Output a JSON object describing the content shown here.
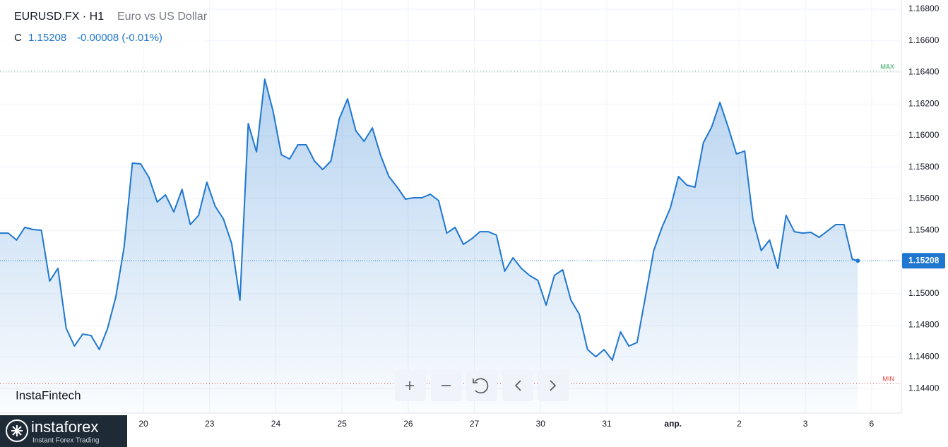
{
  "chart_data": {
    "type": "area",
    "title": "EURUSD.FX · H1",
    "subtitle": "Euro vs US Dollar",
    "close_label": "C",
    "change": "-0.00008 (-0.01%)",
    "brand": "InstaFintech",
    "logo_name": "instaforex",
    "logo_tagline": "Instant Forex Trading",
    "color": "#1f77d0",
    "grid": true,
    "xlim": [
      -52,
      274.8
    ],
    "xticks": [
      {
        "value": 0,
        "label": "20"
      },
      {
        "value": 24,
        "label": "23"
      },
      {
        "value": 48,
        "label": "24"
      },
      {
        "value": 72,
        "label": "25"
      },
      {
        "value": 96,
        "label": "26"
      },
      {
        "value": 120,
        "label": "27"
      },
      {
        "value": 144,
        "label": "30"
      },
      {
        "value": 168,
        "label": "31"
      },
      {
        "value": 192,
        "label": "апр."
      },
      {
        "value": 216,
        "label": "2"
      },
      {
        "value": 240,
        "label": "3"
      },
      {
        "value": 264,
        "label": "6"
      }
    ],
    "ylim": [
      1.14244,
      1.16858
    ],
    "yticks": [
      {
        "value": 1.168,
        "label": "1.16800"
      },
      {
        "value": 1.166,
        "label": "1.16600"
      },
      {
        "value": 1.164,
        "label": "1.16400"
      },
      {
        "value": 1.162,
        "label": "1.16200"
      },
      {
        "value": 1.16,
        "label": "1.16000"
      },
      {
        "value": 1.158,
        "label": "1.15800"
      },
      {
        "value": 1.156,
        "label": "1.15600"
      },
      {
        "value": 1.154,
        "label": "1.15400"
      },
      {
        "value": 1.15,
        "label": "1.15000"
      },
      {
        "value": 1.148,
        "label": "1.14800"
      },
      {
        "value": 1.146,
        "label": "1.14600"
      },
      {
        "value": 1.144,
        "label": "1.14400"
      }
    ],
    "reference_lines": [
      {
        "label": "MAX",
        "value": 1.16407,
        "color": "#26a65b"
      },
      {
        "label": "MIN",
        "value": 1.14431,
        "color": "#e53935"
      }
    ],
    "x": [
      -52,
      -49,
      -46,
      -43,
      -40,
      -37,
      -34,
      -31,
      -28,
      -25,
      -22,
      -19,
      -16,
      -13,
      -10,
      -7,
      -4,
      -1,
      2,
      5,
      8,
      11,
      14,
      17,
      20,
      23,
      26,
      29,
      32,
      35,
      38,
      41,
      44,
      47,
      50,
      53,
      56,
      59,
      62,
      65,
      68,
      71,
      74,
      77,
      80,
      83,
      86,
      89,
      92,
      95,
      98,
      101,
      104,
      107,
      110,
      113,
      116,
      119,
      122,
      125,
      128,
      131,
      134,
      137,
      140,
      143,
      146,
      149,
      152,
      155,
      158,
      161,
      164,
      167,
      170,
      173,
      176,
      179,
      182,
      185,
      188,
      191,
      194,
      197,
      200,
      203,
      206,
      209,
      212,
      215,
      218,
      221,
      224,
      227,
      230,
      233,
      236,
      239,
      242,
      245,
      248,
      251,
      254,
      257,
      259
    ],
    "values": [
      1.15383,
      1.15383,
      1.15339,
      1.15419,
      1.15406,
      1.15401,
      1.15079,
      1.1516,
      1.1478,
      1.14668,
      1.14744,
      1.14735,
      1.14646,
      1.1478,
      1.14981,
      1.15294,
      1.15826,
      1.15821,
      1.15736,
      1.1558,
      1.15625,
      1.15517,
      1.1566,
      1.15437,
      1.15495,
      1.15705,
      1.15553,
      1.15473,
      1.15316,
      1.14959,
      1.16076,
      1.15897,
      1.16357,
      1.16156,
      1.15879,
      1.15852,
      1.15942,
      1.15942,
      1.15839,
      1.15785,
      1.15839,
      1.16107,
      1.16232,
      1.16031,
      1.15964,
      1.16049,
      1.15875,
      1.15741,
      1.15674,
      1.15598,
      1.15607,
      1.15607,
      1.15629,
      1.15589,
      1.15383,
      1.15419,
      1.15312,
      1.15347,
      1.15392,
      1.15392,
      1.1537,
      1.15142,
      1.15227,
      1.1516,
      1.15115,
      1.15084,
      1.14927,
      1.15115,
      1.15151,
      1.14959,
      1.1487,
      1.14646,
      1.14601,
      1.14646,
      1.14579,
      1.14758,
      1.14668,
      1.14691,
      1.14981,
      1.15272,
      1.15419,
      1.1554,
      1.15741,
      1.15687,
      1.15674,
      1.15955,
      1.16054,
      1.1621,
      1.16054,
      1.15884,
      1.15902,
      1.15468,
      1.15272,
      1.15339,
      1.1516,
      1.15495,
      1.15392,
      1.15383,
      1.15388,
      1.15356,
      1.15397,
      1.15437,
      1.15437,
      1.15218,
      1.15208
    ]
  }
}
